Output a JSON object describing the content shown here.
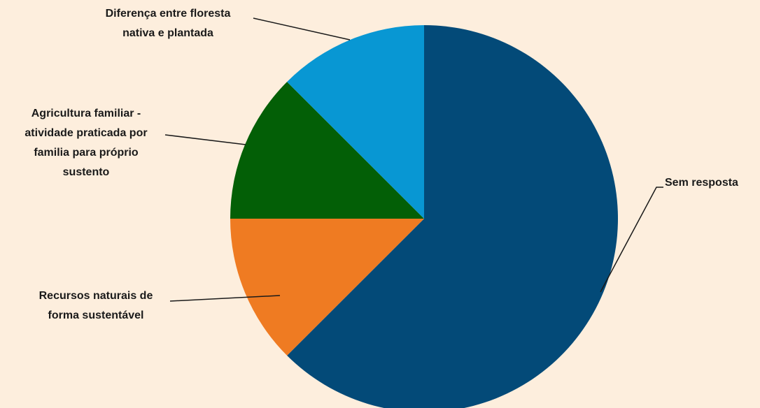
{
  "chart_data": {
    "type": "pie",
    "title": "",
    "slices": [
      {
        "label": "Sem resposta",
        "lines": [
          "Sem resposta"
        ],
        "value": 62.5,
        "color": "#034a78"
      },
      {
        "label": "Recursos naturais de forma sustentável",
        "lines": [
          "Recursos naturais de",
          "forma sustentável"
        ],
        "value": 12.5,
        "color": "#ef7b22"
      },
      {
        "label": "Agricultura familiar - atividade praticada por familia para próprio sustento",
        "lines": [
          "Agricultura familiar -",
          "atividade praticada por",
          "familia para próprio",
          "sustento"
        ],
        "value": 12.5,
        "color": "#035f06"
      },
      {
        "label": "Diferença entre floresta nativa e plantada",
        "lines": [
          "Diferença entre floresta",
          "nativa e plantada"
        ],
        "value": 12.5,
        "color": "#0897d3"
      }
    ],
    "start_angle": "12 o'clock",
    "direction": "clockwise",
    "legend": "none",
    "background_color": "#fdeedd"
  }
}
